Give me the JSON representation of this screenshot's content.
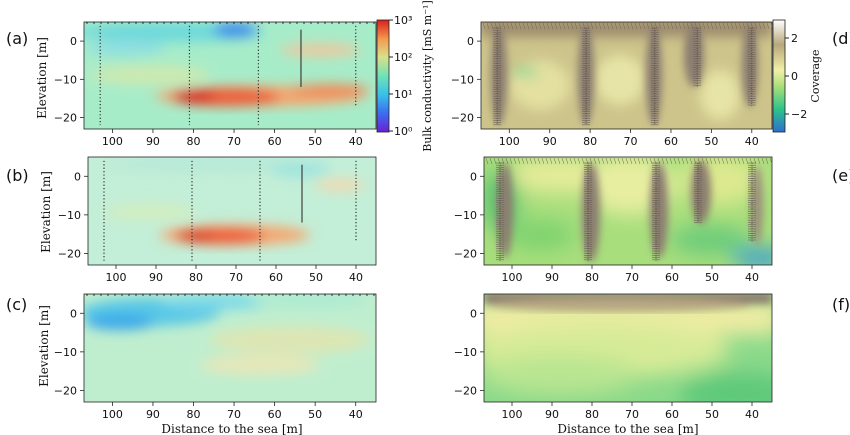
{
  "figure": {
    "xlabel": "Distance to the sea [m]",
    "ylabel": "Elevation [m]",
    "x_ticks": [
      "100",
      "90",
      "80",
      "70",
      "60",
      "50",
      "40"
    ],
    "y_ticks": [
      "0",
      "−10",
      "−20"
    ]
  },
  "colorbars": {
    "conductivity": {
      "label": "Bulk conductivity [mS m⁻¹]",
      "ticks": [
        "10³",
        "10²",
        "10¹",
        "10⁰"
      ]
    },
    "coverage": {
      "label": "Coverage",
      "ticks": [
        "2",
        "0",
        "−2"
      ]
    }
  },
  "panels": {
    "a": {
      "tag": "(a)"
    },
    "b": {
      "tag": "(b)"
    },
    "c": {
      "tag": "(c)"
    },
    "d": {
      "tag": "(d)"
    },
    "e": {
      "tag": "(e)"
    },
    "f": {
      "tag": "(f)"
    }
  },
  "chart_data": [
    {
      "panel": "a",
      "type": "heatmap",
      "quantity": "bulk conductivity (log10 mS/m)",
      "x_range": [
        107,
        35
      ],
      "y_range": [
        -23,
        5
      ],
      "scale": "log",
      "c_range": [
        0,
        3
      ],
      "boreholes_x": [
        103,
        81,
        64,
        53.5,
        40
      ],
      "features": [
        {
          "kind": "high-conductivity layer",
          "x": [
            84,
            40
          ],
          "y": [
            -16,
            -11
          ],
          "value": 2.9
        },
        {
          "kind": "low-conductivity lens",
          "x": [
            105,
            55
          ],
          "y": [
            -4,
            5
          ],
          "value": 1.2
        }
      ]
    },
    {
      "panel": "b",
      "type": "heatmap",
      "quantity": "bulk conductivity (log10 mS/m)",
      "x_range": [
        107,
        35
      ],
      "y_range": [
        -23,
        5
      ],
      "scale": "log",
      "c_range": [
        0,
        3
      ],
      "boreholes_x": [
        103,
        81,
        64,
        53.5,
        40
      ],
      "features": [
        {
          "kind": "high-conductivity layer",
          "x": [
            84,
            57
          ],
          "y": [
            -17,
            -12
          ],
          "value": 2.8
        }
      ]
    },
    {
      "panel": "c",
      "type": "heatmap",
      "quantity": "bulk conductivity (log10 mS/m)",
      "x_range": [
        107,
        35
      ],
      "y_range": [
        -23,
        5
      ],
      "scale": "log",
      "c_range": [
        0,
        3
      ],
      "features": [
        {
          "kind": "low-conductivity zone",
          "x": [
            106,
            60
          ],
          "y": [
            -6,
            4
          ],
          "value": 1.1
        }
      ]
    },
    {
      "panel": "d",
      "type": "heatmap",
      "quantity": "coverage",
      "x_range": [
        107,
        35
      ],
      "y_range": [
        -23,
        5
      ],
      "c_range": [
        -3,
        3
      ],
      "boreholes_x": [
        103,
        81,
        64,
        53.5,
        40
      ],
      "features": [
        {
          "kind": "high coverage near surface and boreholes",
          "value": 2.5
        }
      ]
    },
    {
      "panel": "e",
      "type": "heatmap",
      "quantity": "coverage",
      "x_range": [
        107,
        35
      ],
      "y_range": [
        -23,
        5
      ],
      "c_range": [
        -3,
        3
      ],
      "boreholes_x": [
        103,
        81,
        64,
        53.5,
        40
      ],
      "features": [
        {
          "kind": "high coverage along boreholes",
          "value": 2.5
        },
        {
          "kind": "low coverage bottom-right",
          "x": [
            45,
            35
          ],
          "y": [
            -23,
            -18
          ],
          "value": -1.5
        }
      ]
    },
    {
      "panel": "f",
      "type": "heatmap",
      "quantity": "coverage",
      "x_range": [
        107,
        35
      ],
      "y_range": [
        -23,
        5
      ],
      "c_range": [
        -3,
        3
      ],
      "features": [
        {
          "kind": "high coverage near surface",
          "y": [
            -1,
            5
          ],
          "value": 2.5
        },
        {
          "kind": "decreasing coverage with depth",
          "value": -0.5
        }
      ]
    }
  ]
}
